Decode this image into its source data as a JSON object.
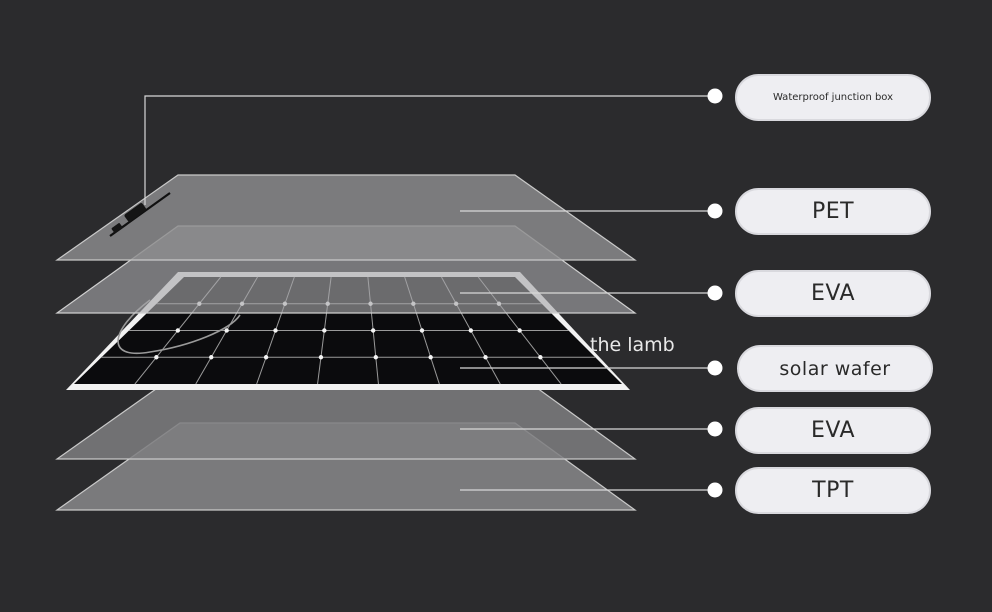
{
  "labels": {
    "junction_box": "Waterproof junction box",
    "pet": "PET",
    "eva_top": "EVA",
    "solar_wafer": "solar wafer",
    "eva_bottom": "EVA",
    "tpt": "TPT"
  },
  "watermark": "the lamb",
  "colors": {
    "background": "#2b2b2d",
    "layer_fill": "#8a8a8c",
    "leader_line": "#d8d8d8",
    "pill_fill": "#eeeef2",
    "cell": "#0b0b0d"
  }
}
